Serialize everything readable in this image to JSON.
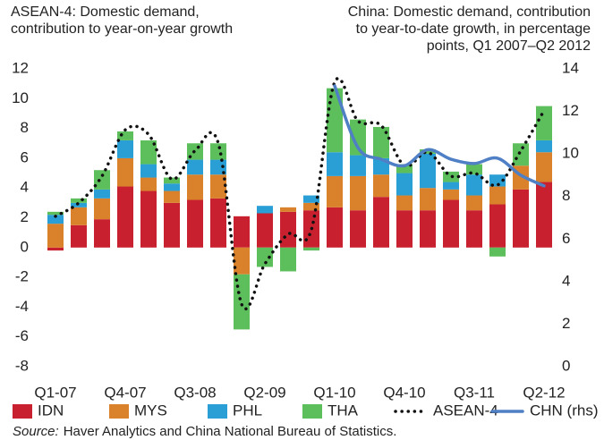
{
  "chart_data": {
    "type": "stacked_bar_line",
    "title_left": [
      "ASEAN-4: Domestic demand,",
      "contribution to year-on-year growth"
    ],
    "title_right": [
      "China: Domestic demand, contribution",
      "to year-to-date growth, in percentage",
      "points, Q1 2007–Q2 2012"
    ],
    "categories": [
      "Q1-07",
      null,
      null,
      "Q4-07",
      null,
      null,
      "Q3-08",
      null,
      null,
      "Q2-09",
      null,
      null,
      "Q1-10",
      null,
      null,
      "Q4-10",
      null,
      null,
      "Q3-11",
      null,
      null,
      "Q2-12"
    ],
    "series": [
      {
        "name": "IDN",
        "color": "#c8202f",
        "kind": "bar",
        "values": [
          -0.2,
          1.5,
          1.9,
          4.1,
          3.8,
          3.0,
          3.2,
          3.3,
          2.1,
          2.3,
          2.4,
          2.5,
          2.7,
          2.5,
          3.4,
          2.5,
          2.5,
          3.2,
          2.5,
          2.9,
          3.9,
          4.4
        ]
      },
      {
        "name": "MYS",
        "color": "#d9822b",
        "kind": "bar",
        "values": [
          1.6,
          1.2,
          1.4,
          1.9,
          0.9,
          0.8,
          1.7,
          1.6,
          -1.8,
          0,
          0.3,
          0.5,
          2.1,
          2.3,
          1.5,
          1.0,
          1.5,
          0.7,
          1.0,
          1.2,
          1.6,
          2.0
        ]
      },
      {
        "name": "PHL",
        "color": "#2a9fd6",
        "kind": "bar",
        "values": [
          0.6,
          0.3,
          0.6,
          1.2,
          0.9,
          0.5,
          1.0,
          1.0,
          0,
          0.5,
          0,
          0.5,
          1.6,
          1.4,
          1.1,
          1.5,
          2.3,
          0.5,
          1.4,
          0.8,
          0,
          0.8
        ]
      },
      {
        "name": "THA",
        "color": "#5cbf5c",
        "kind": "bar",
        "values": [
          0.2,
          0.3,
          1.3,
          0.6,
          1.6,
          0.4,
          1.1,
          1.1,
          -3.7,
          -1.3,
          -1.6,
          -0.2,
          4.3,
          2.4,
          2.1,
          0.6,
          0.3,
          0.7,
          0.7,
          -0.6,
          1.5,
          2.3
        ]
      },
      {
        "name": "ASEAN-4",
        "color": "#111111",
        "kind": "dotted",
        "values": [
          2.1,
          3.0,
          4.8,
          7.9,
          7.6,
          4.6,
          6.5,
          7.0,
          -3.8,
          -1.1,
          0.9,
          1.2,
          11.1,
          8.5,
          8.2,
          5.5,
          6.4,
          4.8,
          5.0,
          4.2,
          6.5,
          9.2
        ]
      },
      {
        "name": "CHN (rhs)",
        "color": "#4f7fc4",
        "kind": "line",
        "axis": "y2",
        "values": [
          null,
          null,
          null,
          null,
          null,
          null,
          null,
          null,
          null,
          null,
          null,
          null,
          13.2,
          10.3,
          9.75,
          9.45,
          10.2,
          9.75,
          9.55,
          9.8,
          9.0,
          8.5
        ]
      }
    ],
    "ylim": [
      -8,
      12
    ],
    "yticks": [
      -8,
      -6,
      -4,
      -2,
      0,
      2,
      4,
      6,
      8,
      10,
      12
    ],
    "y2lim": [
      0,
      14
    ],
    "y2ticks": [
      0,
      2,
      4,
      6,
      8,
      10,
      12,
      14
    ],
    "source_label": "Source:",
    "source": "Haver Analytics and China National Bureau of Statistics."
  }
}
